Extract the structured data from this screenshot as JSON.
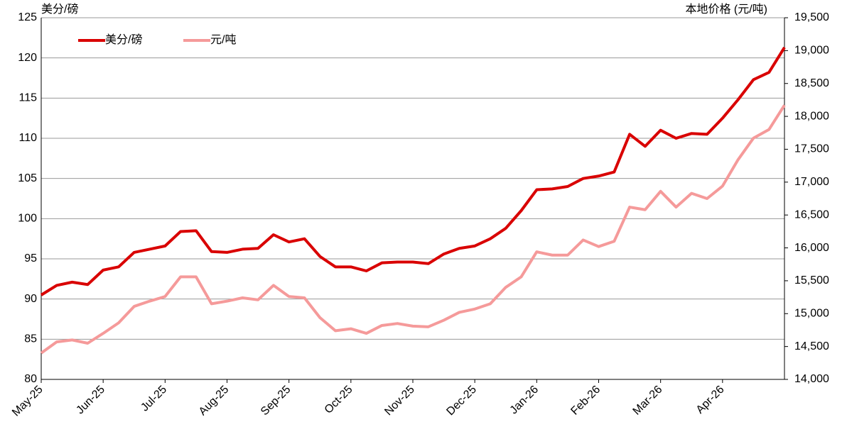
{
  "chart_data": {
    "type": "line",
    "y_label": "美分/磅",
    "y2_label": "本地价格 (元/吨)",
    "categories": [
      "May-25",
      null,
      null,
      null,
      "Jun-25",
      null,
      null,
      null,
      "Jul-25",
      null,
      null,
      null,
      "Aug-25",
      null,
      null,
      null,
      "Sep-25",
      null,
      null,
      null,
      "Oct-25",
      null,
      null,
      null,
      "Nov-25",
      null,
      null,
      null,
      "Dec-25",
      null,
      null,
      null,
      "Jan-26",
      null,
      null,
      null,
      "Feb-26",
      null,
      null,
      null,
      "Mar-26",
      null,
      null,
      null,
      "Apr-26",
      null,
      null,
      null,
      null
    ],
    "series": [
      {
        "name": "美分/磅",
        "color": "#d90000",
        "values": [
          90.5,
          91.7,
          92.1,
          91.8,
          93.6,
          94.0,
          95.8,
          96.2,
          96.6,
          98.4,
          98.5,
          95.9,
          95.8,
          96.2,
          96.3,
          98.0,
          97.1,
          97.5,
          95.3,
          94.0,
          94.0,
          93.5,
          94.5,
          94.6,
          94.6,
          94.4,
          95.6,
          96.3,
          96.6,
          97.5,
          98.8,
          101.0,
          103.6,
          103.7,
          104.0,
          105.0,
          105.3,
          105.8,
          110.5,
          109.0,
          111.0,
          110.0,
          110.6,
          110.5,
          112.5,
          114.8,
          117.3,
          118.2,
          121.3
        ]
      },
      {
        "name": "元/吨",
        "color": "#f59a9a",
        "axis": "y2",
        "values": [
          14400,
          14570,
          14600,
          14550,
          14700,
          14860,
          15110,
          15190,
          15260,
          15560,
          15560,
          15150,
          15190,
          15240,
          15210,
          15430,
          15260,
          15240,
          14940,
          14740,
          14770,
          14700,
          14820,
          14850,
          14810,
          14800,
          14900,
          15020,
          15070,
          15150,
          15400,
          15560,
          15940,
          15890,
          15890,
          16120,
          16020,
          16100,
          16620,
          16580,
          16860,
          16620,
          16830,
          16750,
          16940,
          17340,
          17670,
          17800,
          18170
        ]
      }
    ],
    "ylim": [
      80,
      125
    ],
    "yticks": [
      80,
      85,
      90,
      95,
      100,
      105,
      110,
      115,
      120,
      125
    ],
    "y2lim": [
      14000,
      19500
    ],
    "y2ticks": [
      {
        "value": 14000,
        "label": "14,000"
      },
      {
        "value": 14500,
        "label": "14,500"
      },
      {
        "value": 15000,
        "label": "15,000"
      },
      {
        "value": 15500,
        "label": "15,500"
      },
      {
        "value": 16000,
        "label": "16,000"
      },
      {
        "value": 16500,
        "label": "16,500"
      },
      {
        "value": 17000,
        "label": "17,000"
      },
      {
        "value": 17500,
        "label": "17,500"
      },
      {
        "value": 18000,
        "label": "18,000"
      },
      {
        "value": 18500,
        "label": "18,500"
      },
      {
        "value": 19000,
        "label": "19,000"
      },
      {
        "value": 19500,
        "label": "19,500"
      }
    ],
    "grid": true,
    "legend": "upper left"
  }
}
